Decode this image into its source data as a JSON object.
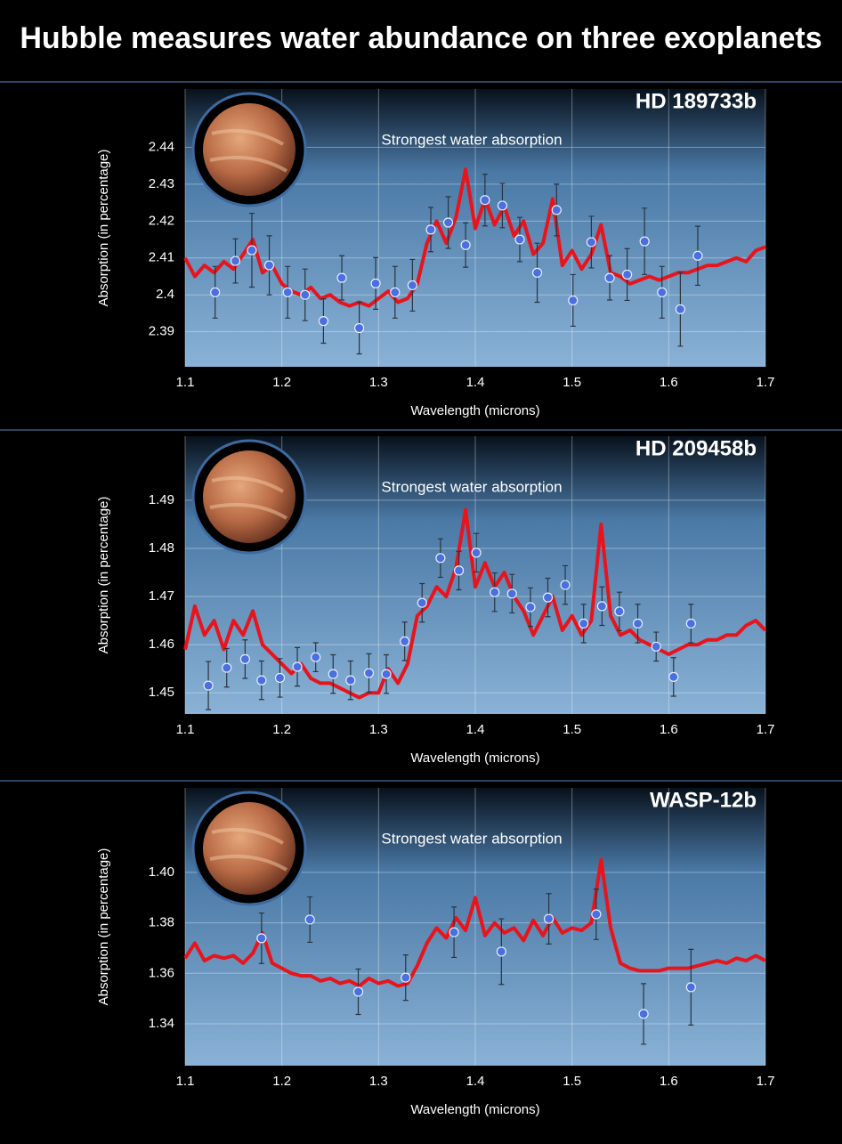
{
  "title": "Hubble measures water abundance on three exoplanets",
  "chart_data": [
    {
      "type": "line",
      "title": "HD 189733b",
      "annotation": "Strongest water absorption",
      "x_label": "Wavelength (microns)",
      "y_label": "Absorption (in percentage)",
      "xlim": [
        1.1,
        1.7
      ],
      "xticks": [
        1.1,
        1.2,
        1.3,
        1.4,
        1.5,
        1.6,
        1.7
      ],
      "ylim": [
        2.3805,
        2.4558
      ],
      "yticks": [
        2.39,
        2.4,
        2.41,
        2.42,
        2.43,
        2.44
      ],
      "grid": true,
      "series": [
        {
          "style": "line",
          "color": "#e8141c",
          "x": [
            1.1,
            1.11,
            1.12,
            1.13,
            1.14,
            1.15,
            1.16,
            1.17,
            1.18,
            1.19,
            1.2,
            1.21,
            1.22,
            1.23,
            1.24,
            1.25,
            1.26,
            1.27,
            1.28,
            1.29,
            1.3,
            1.31,
            1.32,
            1.33,
            1.34,
            1.35,
            1.36,
            1.37,
            1.38,
            1.39,
            1.4,
            1.41,
            1.42,
            1.43,
            1.44,
            1.45,
            1.46,
            1.47,
            1.48,
            1.49,
            1.5,
            1.51,
            1.52,
            1.53,
            1.54,
            1.55,
            1.56,
            1.57,
            1.58,
            1.59,
            1.6,
            1.61,
            1.62,
            1.63,
            1.64,
            1.65,
            1.66,
            1.67,
            1.68,
            1.69,
            1.7
          ],
          "values": [
            2.41,
            2.405,
            2.408,
            2.406,
            2.409,
            2.407,
            2.411,
            2.415,
            2.406,
            2.408,
            2.403,
            2.401,
            2.4,
            2.402,
            2.399,
            2.4,
            2.398,
            2.397,
            2.398,
            2.397,
            2.399,
            2.401,
            2.398,
            2.399,
            2.403,
            2.414,
            2.42,
            2.414,
            2.421,
            2.434,
            2.418,
            2.426,
            2.419,
            2.424,
            2.416,
            2.42,
            2.411,
            2.414,
            2.426,
            2.408,
            2.412,
            2.407,
            2.411,
            2.419,
            2.406,
            2.405,
            2.403,
            2.404,
            2.405,
            2.404,
            2.405,
            2.406,
            2.406,
            2.407,
            2.408,
            2.408,
            2.409,
            2.41,
            2.409,
            2.412,
            2.413
          ]
        },
        {
          "style": "points",
          "color": "#4a6fe0",
          "x": [
            1.131,
            1.152,
            1.169,
            1.187,
            1.206,
            1.224,
            1.243,
            1.262,
            1.28,
            1.297,
            1.317,
            1.335,
            1.354,
            1.372,
            1.39,
            1.41,
            1.428,
            1.446,
            1.464,
            1.484,
            1.501,
            1.52,
            1.539,
            1.557,
            1.575,
            1.593,
            1.612,
            1.63
          ],
          "values": [
            2.4007,
            2.4092,
            2.4121,
            2.408,
            2.4007,
            2.4,
            2.3929,
            2.4046,
            2.391,
            2.4031,
            2.4007,
            2.4026,
            2.4177,
            2.4196,
            2.4135,
            2.4257,
            2.4242,
            2.415,
            2.406,
            2.423,
            2.3985,
            2.4143,
            2.4046,
            2.4055,
            2.4145,
            2.4007,
            2.3961,
            2.4106
          ],
          "errors": [
            0.007,
            0.006,
            0.01,
            0.008,
            0.007,
            0.007,
            0.006,
            0.006,
            0.007,
            0.007,
            0.007,
            0.007,
            0.006,
            0.007,
            0.006,
            0.007,
            0.006,
            0.006,
            0.008,
            0.007,
            0.007,
            0.007,
            0.006,
            0.007,
            0.009,
            0.007,
            0.01,
            0.008
          ]
        }
      ]
    },
    {
      "type": "line",
      "title": "HD 209458b",
      "annotation": "Strongest water absorption",
      "x_label": "Wavelength (microns)",
      "y_label": "Absorption (in percentage)",
      "xlim": [
        1.1,
        1.7
      ],
      "xticks": [
        1.1,
        1.2,
        1.3,
        1.4,
        1.5,
        1.6,
        1.7
      ],
      "ylim": [
        1.4456,
        1.5033
      ],
      "yticks": [
        1.45,
        1.46,
        1.47,
        1.48,
        1.49
      ],
      "grid": true,
      "series": [
        {
          "style": "line",
          "color": "#e8141c",
          "x": [
            1.1,
            1.11,
            1.12,
            1.13,
            1.14,
            1.15,
            1.16,
            1.17,
            1.18,
            1.19,
            1.2,
            1.21,
            1.22,
            1.23,
            1.24,
            1.25,
            1.26,
            1.27,
            1.28,
            1.29,
            1.3,
            1.31,
            1.32,
            1.33,
            1.34,
            1.35,
            1.36,
            1.37,
            1.38,
            1.39,
            1.4,
            1.41,
            1.42,
            1.43,
            1.44,
            1.45,
            1.46,
            1.47,
            1.48,
            1.49,
            1.5,
            1.51,
            1.52,
            1.53,
            1.54,
            1.55,
            1.56,
            1.57,
            1.58,
            1.59,
            1.6,
            1.61,
            1.62,
            1.63,
            1.64,
            1.65,
            1.66,
            1.67,
            1.68,
            1.69,
            1.7
          ],
          "values": [
            1.459,
            1.468,
            1.462,
            1.465,
            1.459,
            1.465,
            1.462,
            1.467,
            1.46,
            1.458,
            1.456,
            1.454,
            1.456,
            1.453,
            1.452,
            1.452,
            1.451,
            1.45,
            1.449,
            1.45,
            1.45,
            1.455,
            1.452,
            1.456,
            1.466,
            1.468,
            1.472,
            1.47,
            1.476,
            1.488,
            1.472,
            1.477,
            1.472,
            1.475,
            1.47,
            1.467,
            1.462,
            1.466,
            1.47,
            1.463,
            1.466,
            1.462,
            1.465,
            1.485,
            1.466,
            1.462,
            1.463,
            1.461,
            1.46,
            1.459,
            1.458,
            1.459,
            1.46,
            1.46,
            1.461,
            1.461,
            1.462,
            1.462,
            1.464,
            1.465,
            1.463
          ]
        },
        {
          "style": "points",
          "color": "#4a6fe0",
          "x": [
            1.124,
            1.143,
            1.162,
            1.179,
            1.198,
            1.216,
            1.235,
            1.253,
            1.271,
            1.29,
            1.308,
            1.327,
            1.345,
            1.364,
            1.383,
            1.401,
            1.42,
            1.438,
            1.457,
            1.475,
            1.493,
            1.512,
            1.531,
            1.549,
            1.568,
            1.587,
            1.605,
            1.623
          ],
          "values": [
            1.4515,
            1.4552,
            1.457,
            1.4526,
            1.4531,
            1.4554,
            1.4574,
            1.4539,
            1.4526,
            1.4541,
            1.4539,
            1.4607,
            1.4687,
            1.478,
            1.4754,
            1.4791,
            1.4709,
            1.4706,
            1.4678,
            1.4698,
            1.4724,
            1.4644,
            1.468,
            1.4669,
            1.4644,
            1.4596,
            1.4533,
            1.4644
          ],
          "errors": [
            0.005,
            0.004,
            0.004,
            0.004,
            0.004,
            0.004,
            0.003,
            0.004,
            0.004,
            0.004,
            0.004,
            0.004,
            0.004,
            0.004,
            0.004,
            0.004,
            0.004,
            0.004,
            0.004,
            0.004,
            0.004,
            0.004,
            0.004,
            0.004,
            0.004,
            0.003,
            0.004,
            0.004
          ]
        }
      ]
    },
    {
      "type": "line",
      "title": "WASP-12b",
      "annotation": "Strongest water absorption",
      "x_label": "Wavelength (microns)",
      "y_label": "Absorption (in percentage)",
      "xlim": [
        1.1,
        1.7
      ],
      "xticks": [
        1.1,
        1.2,
        1.3,
        1.4,
        1.5,
        1.6,
        1.7
      ],
      "ylim": [
        1.3234,
        1.4335
      ],
      "yticks": [
        1.34,
        1.36,
        1.38,
        {
          "value": 1.4,
          "label": "1.40"
        }
      ],
      "grid": true,
      "series": [
        {
          "style": "line",
          "color": "#e8141c",
          "x": [
            1.1,
            1.11,
            1.12,
            1.13,
            1.14,
            1.15,
            1.16,
            1.17,
            1.18,
            1.19,
            1.2,
            1.21,
            1.22,
            1.23,
            1.24,
            1.25,
            1.26,
            1.27,
            1.28,
            1.29,
            1.3,
            1.31,
            1.32,
            1.33,
            1.34,
            1.35,
            1.36,
            1.37,
            1.38,
            1.39,
            1.4,
            1.41,
            1.42,
            1.43,
            1.44,
            1.45,
            1.46,
            1.47,
            1.48,
            1.49,
            1.5,
            1.51,
            1.52,
            1.53,
            1.54,
            1.55,
            1.56,
            1.57,
            1.58,
            1.59,
            1.6,
            1.61,
            1.62,
            1.63,
            1.64,
            1.65,
            1.66,
            1.67,
            1.68,
            1.69,
            1.7
          ],
          "values": [
            1.366,
            1.372,
            1.365,
            1.367,
            1.366,
            1.367,
            1.364,
            1.368,
            1.376,
            1.364,
            1.362,
            1.36,
            1.359,
            1.359,
            1.357,
            1.358,
            1.356,
            1.357,
            1.355,
            1.358,
            1.356,
            1.357,
            1.355,
            1.356,
            1.363,
            1.372,
            1.378,
            1.374,
            1.382,
            1.377,
            1.39,
            1.375,
            1.38,
            1.376,
            1.378,
            1.373,
            1.381,
            1.375,
            1.382,
            1.376,
            1.378,
            1.377,
            1.38,
            1.405,
            1.378,
            1.364,
            1.362,
            1.361,
            1.361,
            1.361,
            1.362,
            1.362,
            1.362,
            1.363,
            1.364,
            1.365,
            1.364,
            1.366,
            1.365,
            1.367,
            1.365
          ]
        },
        {
          "style": "points",
          "color": "#4a6fe0",
          "x": [
            1.179,
            1.229,
            1.279,
            1.328,
            1.378,
            1.427,
            1.476,
            1.525,
            1.574,
            1.623
          ],
          "values": [
            1.3739,
            1.3813,
            1.3527,
            1.3583,
            1.3763,
            1.3686,
            1.3816,
            1.3834,
            1.3439,
            1.3545
          ],
          "errors": [
            0.01,
            0.009,
            0.009,
            0.009,
            0.01,
            0.013,
            0.01,
            0.01,
            0.012,
            0.015
          ]
        }
      ]
    }
  ]
}
